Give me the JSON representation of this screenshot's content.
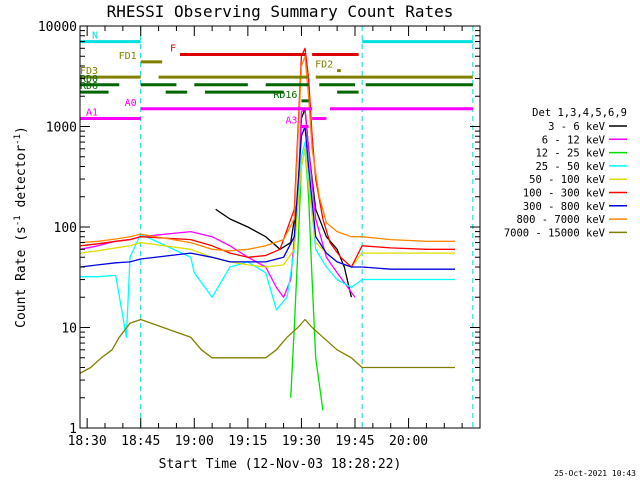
{
  "chart_data": {
    "type": "line",
    "title": "RHESSI Observing Summary Count Rates",
    "xlabel": "Start Time (12-Nov-03 18:28:22)",
    "ylabel_main": "Count Rate (s",
    "ylabel_sup1": "-1",
    "ylabel_mid": " detector",
    "ylabel_sup2": "-1",
    "ylabel_end": ")",
    "y_scale": "log",
    "ylim": [
      1,
      10000
    ],
    "y_ticks": [
      "1",
      "10",
      "100",
      "1000",
      "10000"
    ],
    "xlim_minutes": [
      1108,
      1220
    ],
    "x_ticks": [
      {
        "label": "18:30",
        "minute": 1110
      },
      {
        "label": "18:45",
        "minute": 1125
      },
      {
        "label": "19:00",
        "minute": 1140
      },
      {
        "label": "19:15",
        "minute": 1155
      },
      {
        "label": "19:30",
        "minute": 1170
      },
      {
        "label": "19:45",
        "minute": 1185
      },
      {
        "label": "20:00",
        "minute": 1200
      }
    ],
    "legend_title": "Det 1,3,4,5,6,9",
    "legend_position": "right",
    "series": [
      {
        "name": "3 - 6 keV",
        "color": "#000000",
        "points": [
          [
            1146,
            150
          ],
          [
            1150,
            120
          ],
          [
            1155,
            100
          ],
          [
            1160,
            80
          ],
          [
            1164,
            60
          ],
          [
            1167,
            70
          ],
          [
            1169,
            200
          ],
          [
            1170,
            1200
          ],
          [
            1171,
            1500
          ],
          [
            1172,
            600
          ],
          [
            1174,
            150
          ],
          [
            1177,
            80
          ],
          [
            1180,
            60
          ],
          [
            1182,
            40
          ],
          [
            1184,
            20
          ]
        ]
      },
      {
        "name": "6 - 12 keV",
        "color": "#ff00ff",
        "points": [
          [
            1108,
            60
          ],
          [
            1113,
            65
          ],
          [
            1118,
            72
          ],
          [
            1122,
            75
          ],
          [
            1125,
            80
          ],
          [
            1139,
            90
          ],
          [
            1145,
            80
          ],
          [
            1150,
            65
          ],
          [
            1155,
            50
          ],
          [
            1160,
            40
          ],
          [
            1163,
            25
          ],
          [
            1165,
            20
          ],
          [
            1167,
            30
          ],
          [
            1169,
            200
          ],
          [
            1170,
            1400
          ],
          [
            1171,
            1500
          ],
          [
            1172,
            600
          ],
          [
            1174,
            120
          ],
          [
            1177,
            50
          ],
          [
            1180,
            35
          ],
          [
            1183,
            25
          ],
          [
            1185,
            20
          ]
        ]
      },
      {
        "name": "12 - 25 keV",
        "color": "#00dd00",
        "points": [
          [
            1167,
            2
          ],
          [
            1168,
            10
          ],
          [
            1169,
            60
          ],
          [
            1170,
            400
          ],
          [
            1171,
            600
          ],
          [
            1172,
            200
          ],
          [
            1173,
            30
          ],
          [
            1174,
            5
          ],
          [
            1176,
            1.5
          ]
        ]
      },
      {
        "name": "25 - 50 keV",
        "color": "#00ffff",
        "points": [
          [
            1108,
            32
          ],
          [
            1113,
            32
          ],
          [
            1118,
            33
          ],
          [
            1121,
            8
          ],
          [
            1122,
            50
          ],
          [
            1125,
            85
          ],
          [
            1139,
            50
          ],
          [
            1140,
            35
          ],
          [
            1145,
            20
          ],
          [
            1150,
            40
          ],
          [
            1155,
            45
          ],
          [
            1160,
            35
          ],
          [
            1163,
            15
          ],
          [
            1166,
            20
          ],
          [
            1168,
            60
          ],
          [
            1170,
            500
          ],
          [
            1171,
            700
          ],
          [
            1172,
            300
          ],
          [
            1174,
            60
          ],
          [
            1177,
            40
          ],
          [
            1180,
            30
          ],
          [
            1184,
            25
          ],
          [
            1187,
            30
          ],
          [
            1195,
            30
          ],
          [
            1205,
            30
          ],
          [
            1213,
            30
          ]
        ]
      },
      {
        "name": "50 - 100 keV",
        "color": "#dddd00",
        "points": [
          [
            1108,
            55
          ],
          [
            1113,
            58
          ],
          [
            1118,
            62
          ],
          [
            1122,
            65
          ],
          [
            1125,
            70
          ],
          [
            1139,
            60
          ],
          [
            1145,
            50
          ],
          [
            1150,
            45
          ],
          [
            1155,
            42
          ],
          [
            1160,
            40
          ],
          [
            1165,
            42
          ],
          [
            1168,
            60
          ],
          [
            1170,
            400
          ],
          [
            1171,
            600
          ],
          [
            1172,
            250
          ],
          [
            1174,
            70
          ],
          [
            1177,
            55
          ],
          [
            1180,
            45
          ],
          [
            1184,
            40
          ],
          [
            1187,
            55
          ],
          [
            1195,
            55
          ],
          [
            1205,
            55
          ],
          [
            1213,
            55
          ]
        ]
      },
      {
        "name": "100 - 300 keV",
        "color": "#ff0000",
        "points": [
          [
            1108,
            65
          ],
          [
            1113,
            68
          ],
          [
            1118,
            72
          ],
          [
            1122,
            75
          ],
          [
            1125,
            80
          ],
          [
            1139,
            75
          ],
          [
            1145,
            65
          ],
          [
            1150,
            55
          ],
          [
            1155,
            50
          ],
          [
            1160,
            52
          ],
          [
            1164,
            60
          ],
          [
            1168,
            150
          ],
          [
            1170,
            5000
          ],
          [
            1171,
            6000
          ],
          [
            1172,
            3000
          ],
          [
            1173,
            800
          ],
          [
            1174,
            300
          ],
          [
            1176,
            120
          ],
          [
            1178,
            70
          ],
          [
            1181,
            50
          ],
          [
            1184,
            40
          ],
          [
            1187,
            65
          ],
          [
            1195,
            62
          ],
          [
            1205,
            60
          ],
          [
            1213,
            60
          ]
        ]
      },
      {
        "name": "300 - 800 keV",
        "color": "#0000dd",
        "points": [
          [
            1108,
            40
          ],
          [
            1113,
            42
          ],
          [
            1118,
            44
          ],
          [
            1122,
            45
          ],
          [
            1125,
            48
          ],
          [
            1139,
            55
          ],
          [
            1145,
            50
          ],
          [
            1150,
            45
          ],
          [
            1155,
            45
          ],
          [
            1160,
            45
          ],
          [
            1165,
            50
          ],
          [
            1168,
            80
          ],
          [
            1170,
            800
          ],
          [
            1171,
            1000
          ],
          [
            1172,
            400
          ],
          [
            1174,
            80
          ],
          [
            1177,
            55
          ],
          [
            1180,
            45
          ],
          [
            1184,
            40
          ],
          [
            1187,
            40
          ],
          [
            1195,
            38
          ],
          [
            1205,
            38
          ],
          [
            1213,
            38
          ]
        ]
      },
      {
        "name": "800 - 7000 keV",
        "color": "#ff8800",
        "points": [
          [
            1108,
            70
          ],
          [
            1113,
            72
          ],
          [
            1118,
            76
          ],
          [
            1122,
            80
          ],
          [
            1125,
            85
          ],
          [
            1139,
            70
          ],
          [
            1145,
            60
          ],
          [
            1150,
            58
          ],
          [
            1155,
            60
          ],
          [
            1160,
            65
          ],
          [
            1165,
            75
          ],
          [
            1168,
            120
          ],
          [
            1170,
            4000
          ],
          [
            1171,
            5000
          ],
          [
            1172,
            2000
          ],
          [
            1173,
            600
          ],
          [
            1175,
            200
          ],
          [
            1177,
            110
          ],
          [
            1180,
            90
          ],
          [
            1184,
            80
          ],
          [
            1187,
            80
          ],
          [
            1195,
            75
          ],
          [
            1205,
            72
          ],
          [
            1213,
            72
          ]
        ]
      },
      {
        "name": "7000 - 15000 keV",
        "color": "#808000",
        "points": [
          [
            1108,
            3.5
          ],
          [
            1111,
            4
          ],
          [
            1114,
            5
          ],
          [
            1117,
            6
          ],
          [
            1119,
            8
          ],
          [
            1122,
            11
          ],
          [
            1125,
            12
          ],
          [
            1139,
            8
          ],
          [
            1142,
            6
          ],
          [
            1145,
            5
          ],
          [
            1150,
            5
          ],
          [
            1155,
            5
          ],
          [
            1160,
            5
          ],
          [
            1163,
            6
          ],
          [
            1166,
            8
          ],
          [
            1169,
            10
          ],
          [
            1171,
            12
          ],
          [
            1173,
            10
          ],
          [
            1176,
            8
          ],
          [
            1180,
            6
          ],
          [
            1184,
            5
          ],
          [
            1187,
            4
          ],
          [
            1195,
            4
          ],
          [
            1205,
            4
          ],
          [
            1213,
            4
          ]
        ]
      }
    ],
    "state_bars": [
      {
        "label": "N",
        "color": "#00e0e0",
        "y": 7000,
        "segments": [
          [
            1108,
            1125
          ],
          [
            1187,
            1218
          ]
        ]
      },
      {
        "label": "F",
        "color": "#dd0000",
        "y": 5200,
        "segments": [
          [
            1136,
            1171
          ],
          [
            1173,
            1186
          ]
        ]
      },
      {
        "label": "FD1",
        "color": "#808000",
        "y": 4400,
        "segments": [
          [
            1125,
            1131
          ]
        ]
      },
      {
        "label": "FD2",
        "color": "#808000",
        "y": 3600,
        "segments": [
          [
            1180,
            1181
          ]
        ]
      },
      {
        "label": "FD3",
        "color": "#808000",
        "y": 3100,
        "segments": [
          [
            1108,
            1125
          ],
          [
            1130,
            1172
          ],
          [
            1174,
            1218
          ]
        ]
      },
      {
        "label": "RD0",
        "color": "#006600",
        "y": 2600,
        "segments": [
          [
            1108,
            1119
          ],
          [
            1125,
            1135
          ],
          [
            1140,
            1155
          ],
          [
            1160,
            1172
          ],
          [
            1175,
            1185
          ],
          [
            1188,
            1218
          ]
        ]
      },
      {
        "label": "RD6",
        "color": "#006600",
        "y": 2200,
        "segments": [
          [
            1108,
            1116
          ],
          [
            1132,
            1138
          ],
          [
            1143,
            1165
          ],
          [
            1180,
            1186
          ]
        ]
      },
      {
        "label": "RD16",
        "color": "#006600",
        "y": 1800,
        "segments": [
          [
            1170,
            1172
          ]
        ]
      },
      {
        "label": "A0",
        "color": "#ff00ff",
        "y": 1500,
        "segments": [
          [
            1125,
            1173
          ],
          [
            1178,
            1218
          ]
        ]
      },
      {
        "label": "A1",
        "color": "#ff00ff",
        "y": 1200,
        "segments": [
          [
            1108,
            1125
          ],
          [
            1173,
            1177
          ]
        ]
      },
      {
        "label": "A3",
        "color": "#ff00ff",
        "y": 1000,
        "segments": [
          [
            1170,
            1172
          ]
        ]
      }
    ],
    "saa_boundaries_minutes": [
      1108,
      1125,
      1187,
      1218
    ],
    "timestamp": "25-Oct-2021 10:43"
  }
}
